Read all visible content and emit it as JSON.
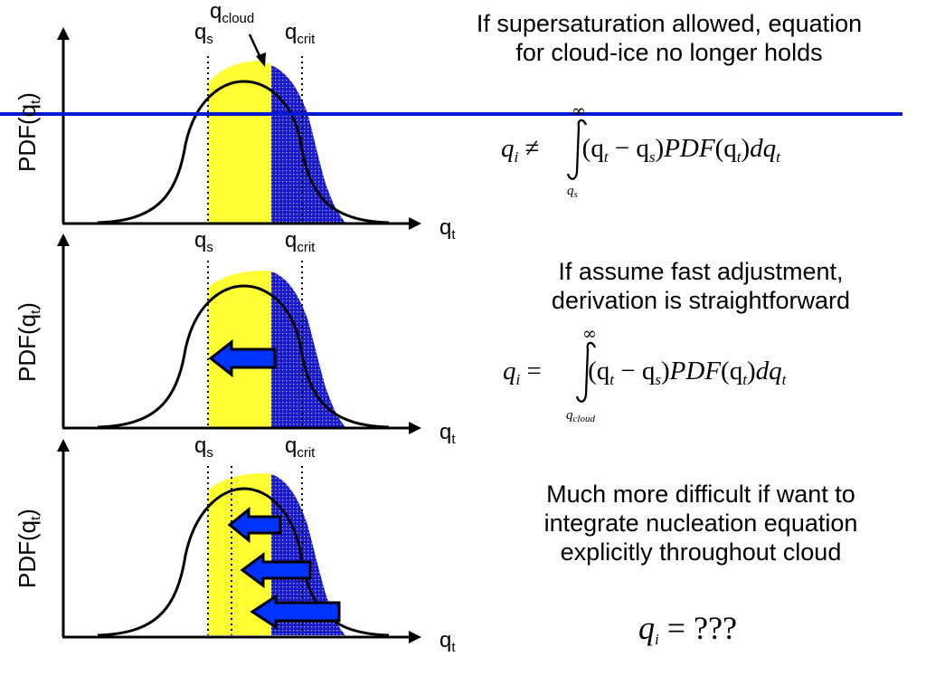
{
  "colors": {
    "fill_left": "#ffff33",
    "fill_right": "#1a1acd",
    "stipple": "#aab0ff",
    "arrow_fill": "#0033ff",
    "blue_line": "#0019d0",
    "curve": "#000000"
  },
  "axis": {
    "y_label": "PDF(q",
    "y_sub": "t",
    "y_close": ")",
    "x_label": "q",
    "x_sub": "t"
  },
  "markers": {
    "qs": {
      "base": "q",
      "sub": "s"
    },
    "qcrit": {
      "base": "q",
      "sub": "crit"
    },
    "qcloud": {
      "base": "q",
      "sub": "cloud"
    }
  },
  "panels": [
    {
      "text_lines": [
        "If supersaturation allowed, equation",
        "for cloud-ice no longer holds"
      ],
      "equation": {
        "lhs": "q",
        "lhs_sub": "i",
        "relation": "≠",
        "integrand": "(q",
        "t1": "t",
        "minus": " − q",
        "s1": "s",
        "close": ")",
        "pdf": "PDF",
        "open2": "(q",
        "t2": "t",
        "close2": ")",
        "dq": "dq",
        "t3": "t"
      },
      "upper_limit": "∞",
      "lower_limit": {
        "base": "q",
        "sub": "s"
      }
    },
    {
      "text_lines": [
        "If assume fast adjustment,",
        "derivation is straightforward"
      ],
      "equation": {
        "lhs": "q",
        "lhs_sub": "i",
        "relation": "=",
        "integrand": "(q",
        "t1": "t",
        "minus": " − q",
        "s1": "s",
        "close": ")",
        "pdf": "PDF",
        "open2": "(q",
        "t2": "t",
        "close2": ")",
        "dq": "dq",
        "t3": "t"
      },
      "upper_limit": "∞",
      "lower_limit": {
        "base": "q",
        "sub": "cloud"
      }
    },
    {
      "text_lines": [
        "Much more difficult if want to",
        "integrate nucleation equation",
        "explicitly throughout cloud"
      ],
      "equation": {
        "lhs": "q",
        "lhs_sub": "i",
        "relation": "=",
        "rhs": "???"
      }
    }
  ]
}
